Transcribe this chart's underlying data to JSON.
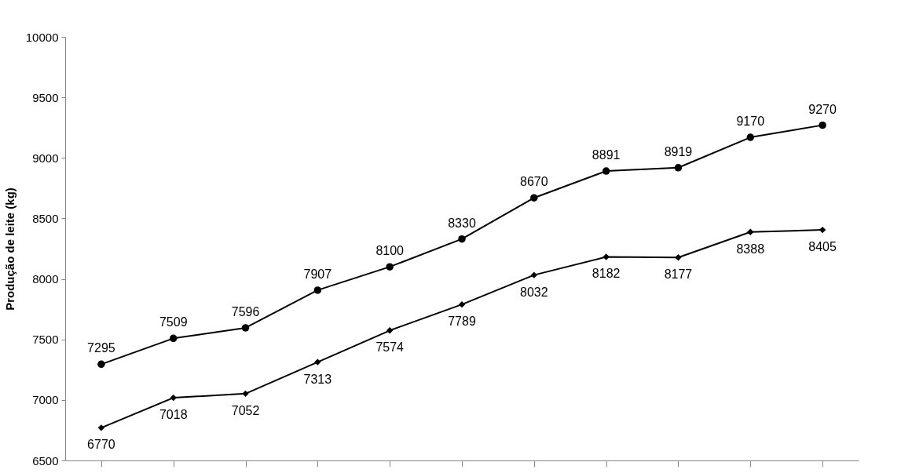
{
  "chart_data": {
    "type": "line",
    "ylabel": "Produção de leite (kg)",
    "categories": [
      null,
      null,
      null,
      null,
      null,
      null,
      null,
      null,
      null,
      null,
      null
    ],
    "series": [
      {
        "color": "#000000",
        "marker": "circle",
        "values": [
          7295,
          7509,
          7596,
          7907,
          8100,
          8330,
          8670,
          8891,
          8919,
          9170,
          9270
        ]
      },
      {
        "color": "#000000",
        "marker": "diamond",
        "values": [
          6770,
          7018,
          7052,
          7313,
          7574,
          7789,
          8032,
          8182,
          8177,
          8388,
          8405
        ]
      }
    ],
    "ylim": [
      6500,
      10000
    ],
    "yticks": [
      6500,
      7000,
      7500,
      8000,
      8500,
      9000,
      9500,
      10000
    ],
    "data_labels": true,
    "grid": false,
    "tick_labels": "y",
    "line_style": "solid"
  }
}
